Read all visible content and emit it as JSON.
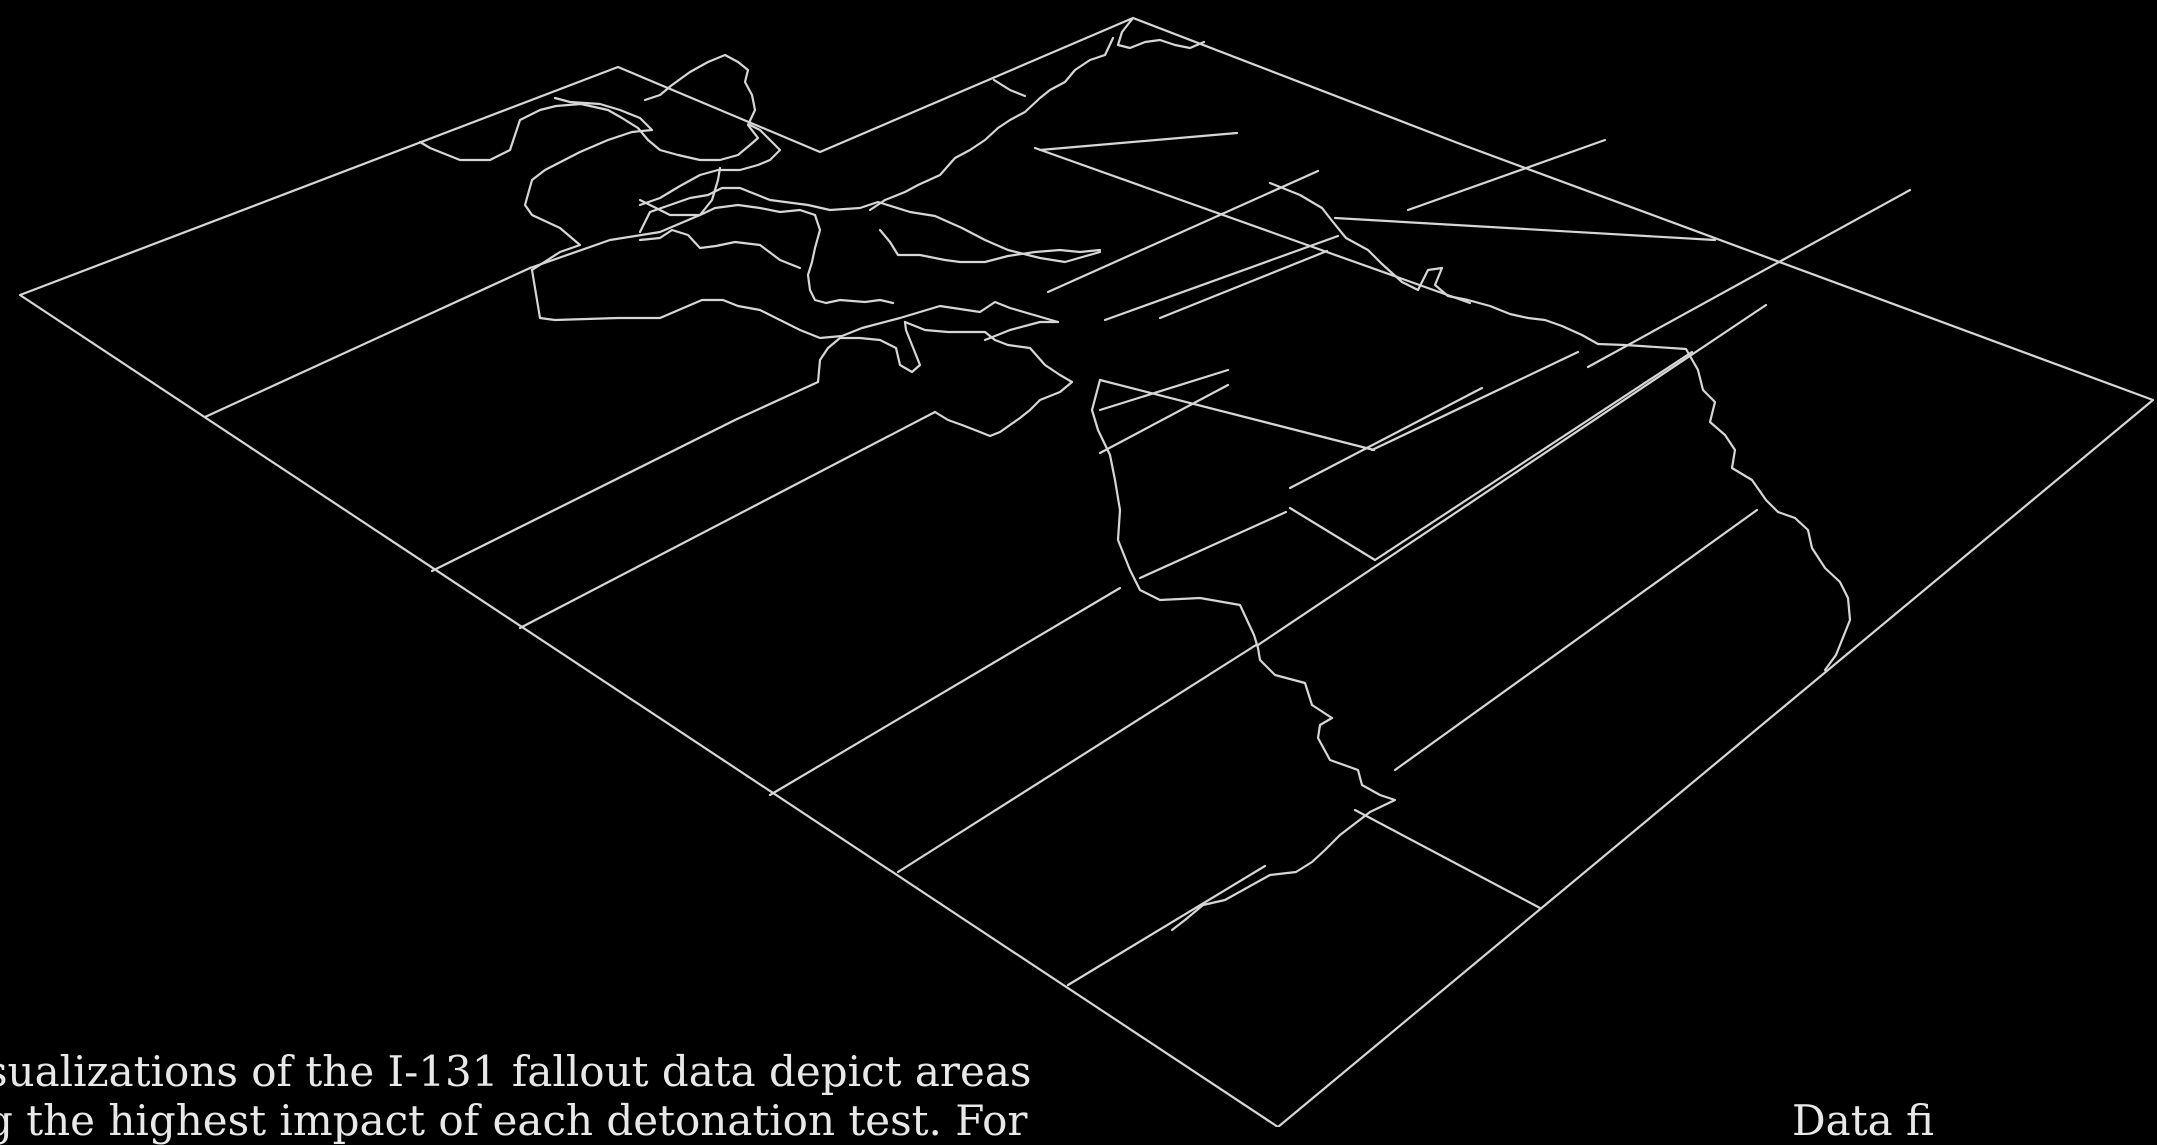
{
  "map": {
    "stroke_color": "#d6d6d6",
    "background_color": "#000000"
  },
  "caption": {
    "line1": "sualizations of the I-131 fallout data depict areas",
    "line2": "g the highest impact of each detonation test. For",
    "right_fragment": "Data fi"
  }
}
